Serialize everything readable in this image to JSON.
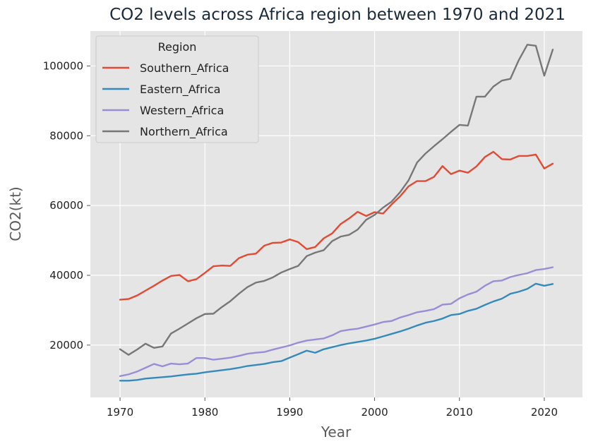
{
  "chart_data": {
    "type": "line",
    "title": "CO2 levels across Africa region between 1970 and 2021",
    "xlabel": "Year",
    "ylabel": "CO2(kt)",
    "xlim": [
      1966.5,
      2024.5
    ],
    "ylim": [
      5000,
      110000
    ],
    "xticks": [
      1970,
      1980,
      1990,
      2000,
      2010,
      2020
    ],
    "yticks": [
      20000,
      40000,
      60000,
      80000,
      100000
    ],
    "grid": true,
    "background": "#e5e5e5",
    "legend": {
      "title": "Region",
      "placement": "top-left"
    },
    "x": [
      1970,
      1971,
      1972,
      1973,
      1974,
      1975,
      1976,
      1977,
      1978,
      1979,
      1980,
      1981,
      1982,
      1983,
      1984,
      1985,
      1986,
      1987,
      1988,
      1989,
      1990,
      1991,
      1992,
      1993,
      1994,
      1995,
      1996,
      1997,
      1998,
      1999,
      2000,
      2001,
      2002,
      2003,
      2004,
      2005,
      2006,
      2007,
      2008,
      2009,
      2010,
      2011,
      2012,
      2013,
      2014,
      2015,
      2016,
      2017,
      2018,
      2019,
      2020,
      2021
    ],
    "series": [
      {
        "name": "Southern_Africa",
        "color": "#e24a33",
        "values": [
          33000,
          33200,
          34200,
          35600,
          37000,
          38500,
          39800,
          40100,
          38300,
          38900,
          40700,
          42600,
          42800,
          42700,
          44900,
          45900,
          46200,
          48500,
          49300,
          49400,
          50300,
          49500,
          47500,
          48100,
          50600,
          52000,
          54700,
          56300,
          58200,
          57000,
          58100,
          57700,
          60300,
          62600,
          65500,
          67000,
          67000,
          68200,
          71300,
          69000,
          70000,
          69400,
          71200,
          73900,
          75400,
          73300,
          73200,
          74200,
          74200,
          74600,
          70600,
          72000
        ]
      },
      {
        "name": "Eastern_Africa",
        "color": "#348abd",
        "values": [
          9800,
          9800,
          10000,
          10400,
          10600,
          10800,
          11000,
          11300,
          11600,
          11800,
          12200,
          12500,
          12800,
          13100,
          13500,
          14000,
          14300,
          14600,
          15100,
          15400,
          16400,
          17400,
          18400,
          17800,
          18800,
          19400,
          20000,
          20500,
          20900,
          21300,
          21800,
          22500,
          23200,
          23900,
          24700,
          25600,
          26400,
          26900,
          27600,
          28600,
          28900,
          29800,
          30400,
          31500,
          32500,
          33300,
          34700,
          35300,
          36100,
          37600,
          37000,
          37500
        ]
      },
      {
        "name": "Western_Africa",
        "color": "#988ed5",
        "values": [
          11100,
          11600,
          12400,
          13500,
          14600,
          13900,
          14700,
          14500,
          14700,
          16300,
          16300,
          15800,
          16100,
          16400,
          16900,
          17500,
          17800,
          18000,
          18700,
          19300,
          19900,
          20700,
          21300,
          21600,
          21900,
          22800,
          24000,
          24400,
          24700,
          25300,
          25900,
          26600,
          26900,
          27900,
          28600,
          29400,
          29800,
          30300,
          31600,
          31800,
          33400,
          34500,
          35300,
          37000,
          38300,
          38500,
          39500,
          40100,
          40600,
          41500,
          41800,
          42300
        ]
      },
      {
        "name": "Northern_Africa",
        "color": "#777777",
        "values": [
          18800,
          17200,
          18700,
          20400,
          19200,
          19600,
          23300,
          24700,
          26200,
          27700,
          28900,
          29000,
          30900,
          32600,
          34700,
          36600,
          37900,
          38400,
          39400,
          40800,
          41800,
          42700,
          45500,
          46500,
          47200,
          49800,
          51100,
          51600,
          53100,
          55900,
          57300,
          59400,
          61100,
          63800,
          67200,
          72300,
          74900,
          77000,
          79000,
          81100,
          83100,
          82900,
          91200,
          91200,
          94100,
          95800,
          96300,
          101700,
          106100,
          105800,
          97200,
          104700
        ]
      }
    ]
  }
}
